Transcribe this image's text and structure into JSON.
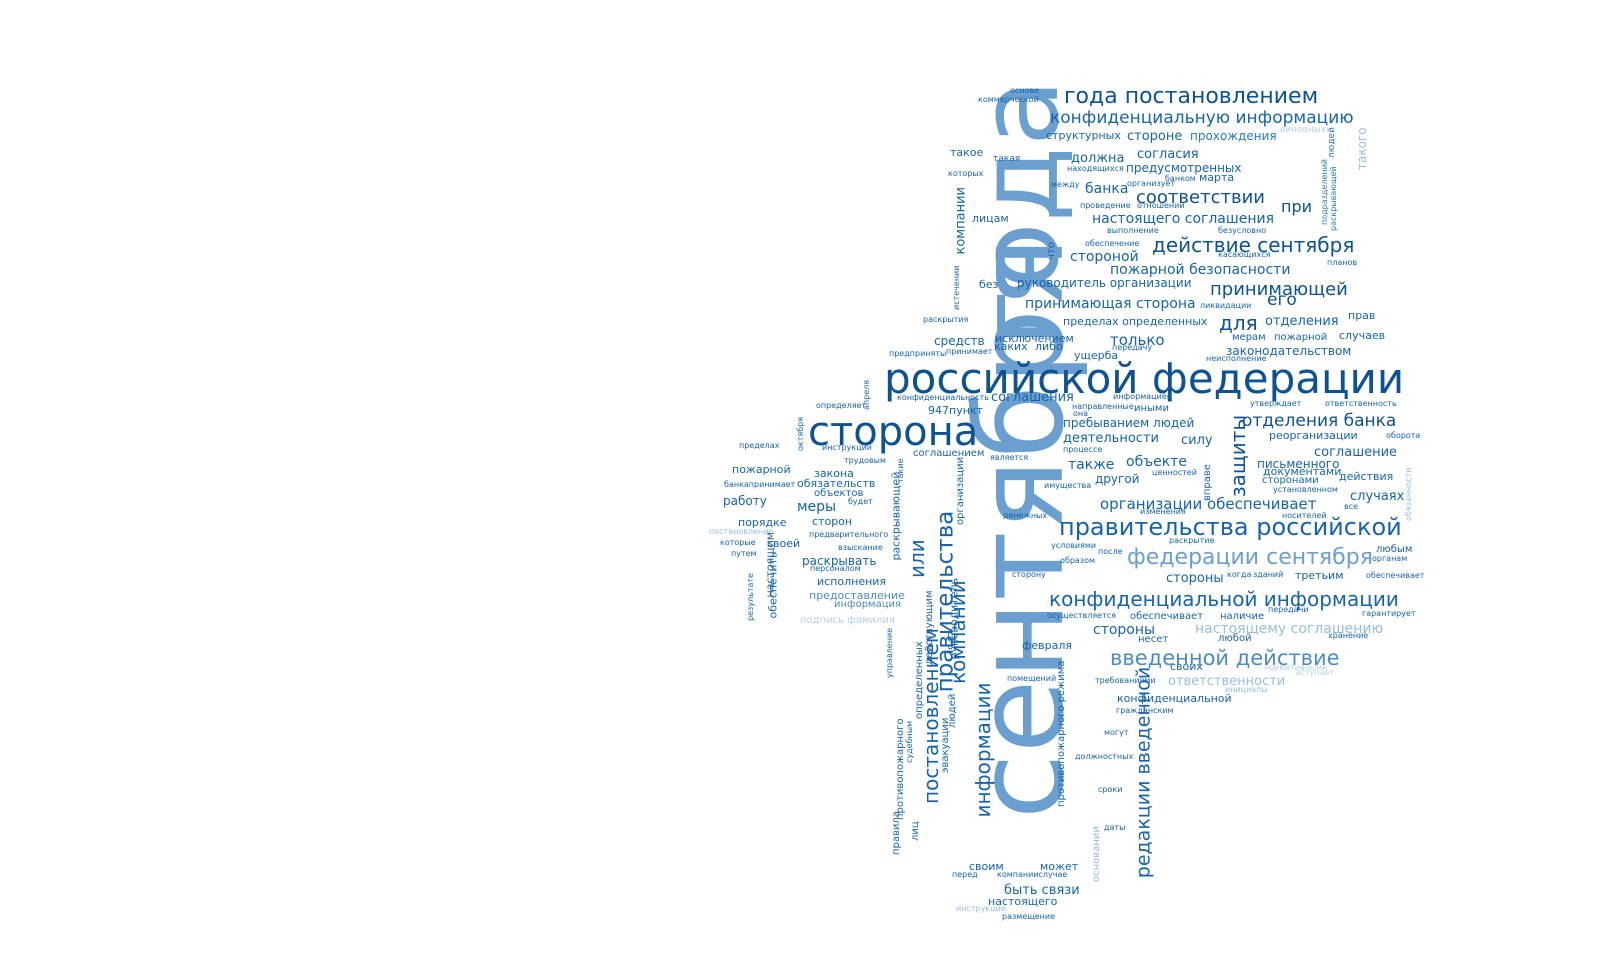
{
  "wordcloud": {
    "words": [
      "сентября",
      "года",
      "российской федерации",
      "сторона",
      "года постановлением",
      "конфиденциальную информацию",
      "структурных",
      "стороне",
      "прохождения",
      "виновных",
      "людей",
      "такого",
      "такое",
      "такая",
      "должна",
      "согласия",
      "находящихся",
      "предусмотренных",
      "которых",
      "между",
      "банка",
      "организует",
      "банком",
      "марта",
      "компании",
      "соответствии",
      "проведение",
      "отношении",
      "при",
      "лицам",
      "настоящего соглашения",
      "подразделений",
      "раскрывающей",
      "выполнение",
      "безусловно",
      "что",
      "обеспечение",
      "действие сентября",
      "стороной",
      "касающихся",
      "планов",
      "истечении",
      "пожарной безопасности",
      "без",
      "руководитель организации",
      "принимающей",
      "принимающая сторона",
      "его",
      "ликвидации",
      "раскрытия",
      "пределах определенных",
      "для",
      "отделения",
      "прав",
      "исключением",
      "мерам",
      "пожарной",
      "случаев",
      "средств",
      "каких",
      "либо",
      "только",
      "предприняты",
      "принимает",
      "передачу",
      "ущерба",
      "законодательством",
      "неисполнение",
      "соглашения",
      "информацией",
      "апреля",
      "конфиденциальность",
      "утверждает",
      "ответственность",
      "947пункт",
      "определяет",
      "направленные",
      "иными",
      "она",
      "пребыванием людей",
      "отделения банка",
      "октября",
      "пределах",
      "инструкций",
      "деятельности",
      "силу",
      "реорганизации",
      "оборота",
      "соглашение",
      "трудовым",
      "соглашением",
      "является",
      "процессе",
      "защиты",
      "письменного",
      "пожарной",
      "закона",
      "также",
      "объекте",
      "документами",
      "действия",
      "такие",
      "обязательств",
      "другой",
      "банкапринимает",
      "ценностей",
      "сторонами",
      "имущества",
      "установленном",
      "объектов",
      "вправе",
      "работу",
      "раскрывающей",
      "организации обеспечивает",
      "случаях",
      "меры",
      "будет",
      "изменения",
      "носителей",
      "все",
      "порядке",
      "сторон",
      "денежных",
      "постановление",
      "предварительного",
      "правительства российской",
      "которые",
      "своей",
      "раскрытие",
      "путем",
      "взыскание",
      "условиями",
      "после",
      "любым",
      "обеспечить",
      "органам",
      "раскрывать",
      "образом",
      "федерации сентября",
      "персоналом",
      "когда",
      "зданий",
      "третьим",
      "результате",
      "исполнения",
      "стороны",
      "обеспечивает",
      "предоставление",
      "сторону",
      "передачи",
      "гарантирует",
      "информация",
      "конфиденциальной информации",
      "осуществляется",
      "обеспечивает",
      "наличие",
      "подпись фамилия",
      "настоящему соглашению",
      "или",
      "стороны",
      "хранение",
      "несет",
      "любой",
      "правительства",
      "организации",
      "действующим",
      "февраля",
      "своих",
      "управление",
      "введенной действие",
      "помещений",
      "руководитель",
      "947",
      "требованиями",
      "вступает",
      "ответственности",
      "нормативными",
      "инициалы",
      "постановлением",
      "компании",
      "информации",
      "противопожарного",
      "определенных",
      "конфиденциальной",
      "эвакуации",
      "людей",
      "гражданским",
      "судебным",
      "редакции введенной",
      "могут",
      "противопожарного режима",
      "должностных",
      "сроки",
      "правила",
      "даты",
      "основании",
      "лиц",
      "своим",
      "может",
      "перед",
      "компаниислучае",
      "быть связи",
      "настоящего",
      "инструкции",
      "размещение",
      "основе",
      "коммерческой",
      "настоящим",
      "обязанности"
    ]
  }
}
